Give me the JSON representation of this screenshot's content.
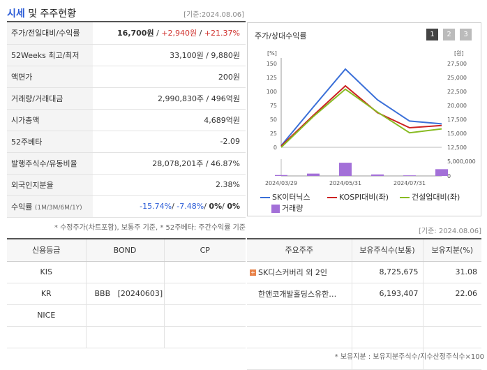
{
  "header": {
    "title_strong": "시세",
    "title_rest": "및 주주현황",
    "date": "[기준:2024.08.06]"
  },
  "info": {
    "rows": [
      {
        "label": "주가/전일대비/수익률",
        "price": "16,700원",
        "sep1": " / ",
        "change": "+2,940원",
        "sep2": " / ",
        "pct": "+21.37%"
      },
      {
        "label": "52Weeks 최고/최저",
        "value": "33,100원 / 9,880원"
      },
      {
        "label": "액면가",
        "value": "200원"
      },
      {
        "label": "거래량/거래대금",
        "value": "2,990,830주 / 496억원"
      },
      {
        "label": "시가총액",
        "value": "4,689억원"
      },
      {
        "label": "52주베타",
        "value": "-2.09"
      },
      {
        "label": "발행주식수/유동비율",
        "value": "28,078,201주 / 46.87%"
      },
      {
        "label": "외국인지분율",
        "value": "2.38%"
      },
      {
        "label": "수익률",
        "label_small": "(1M/3M/6M/1Y)",
        "r1": "-15.74%",
        "r2": "-7.48%",
        "r3": "0%",
        "r4": "0%",
        "sep": "/ "
      }
    ],
    "note": "* 수정주가(차트포함), 보통주 기준, * 52주베타: 주간수익률 기준"
  },
  "chart_panel": {
    "title": "주가/상대수익률",
    "pages": [
      "1",
      "2",
      "3"
    ]
  },
  "chart_data": {
    "type": "line",
    "x": [
      "2024/03/29",
      "2024/04/30",
      "2024/05/31",
      "2024/06/28",
      "2024/07/31",
      "2024/08/06"
    ],
    "x_tick_labels": [
      "2024/03/29",
      "2024/05/31",
      "2024/07/31"
    ],
    "left_axis": {
      "unit": "[%]",
      "ticks": [
        "150",
        "125",
        "100",
        "75",
        "50",
        "25",
        "0"
      ],
      "ylim": [
        0,
        150
      ]
    },
    "right_axis": {
      "unit": "[원]",
      "ticks": [
        "27,500",
        "25,000",
        "22,500",
        "20,000",
        "17,500",
        "15,000",
        "12,500"
      ],
      "ylim": [
        12500,
        27500
      ]
    },
    "volume_axis": {
      "ticks": [
        "5,000,000",
        "0"
      ],
      "ylim": [
        0,
        5000000
      ]
    },
    "series": [
      {
        "name": "SK이터닉스",
        "color": "#3a6fd8",
        "values": [
          3,
          72,
          140,
          85,
          47,
          42
        ]
      },
      {
        "name": "KOSPI대비(좌)",
        "color": "#cc2222",
        "values": [
          2,
          57,
          110,
          62,
          35,
          39
        ]
      },
      {
        "name": "건설업대비(좌)",
        "color": "#88bb22",
        "values": [
          0,
          55,
          104,
          63,
          26,
          33
        ]
      }
    ],
    "volume": {
      "name": "거래량",
      "color": "#a370d8",
      "values": [
        300000,
        800000,
        4500000,
        500000,
        200000,
        2300000
      ]
    }
  },
  "credit": {
    "headers": [
      "신용등급",
      "BOND",
      "CP"
    ],
    "rows": [
      [
        "KIS",
        "",
        ""
      ],
      [
        "KR",
        "BBB   [20240603]",
        ""
      ],
      [
        "NICE",
        "",
        ""
      ],
      [
        "",
        "",
        ""
      ]
    ]
  },
  "holders": {
    "date": "[기준: 2024.08.06]",
    "headers": [
      "주요주주",
      "보유주식수(보통)",
      "보유지분(%)"
    ],
    "rows": [
      {
        "name": "SK디스커버리 외 2인",
        "shares": "8,725,675",
        "pct": "31.08",
        "expandable": true
      },
      {
        "name": "한앤코개발홀딩스유한…",
        "shares": "6,193,407",
        "pct": "22.06",
        "expandable": false
      },
      {
        "name": "",
        "shares": "",
        "pct": ""
      },
      {
        "name": "",
        "shares": "",
        "pct": ""
      },
      {
        "name": "",
        "shares": "",
        "pct": ""
      }
    ],
    "note": "* 보유지분 : 보유지분주식수/지수산정주식수×100"
  }
}
